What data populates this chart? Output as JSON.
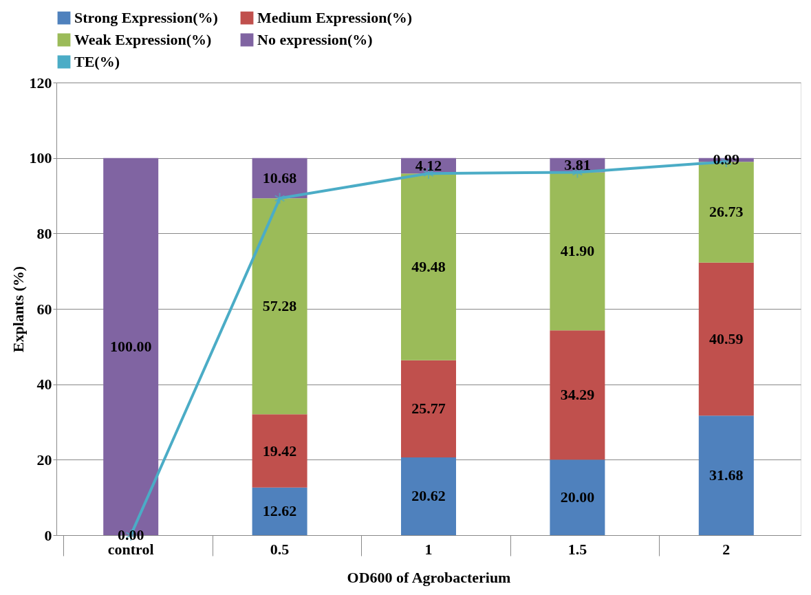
{
  "chart_data": {
    "type": "bar",
    "stacked": true,
    "xlabel": "OD600 of Agrobacterium",
    "ylabel": "Explants (%)",
    "categories": [
      "control",
      "0.5",
      "1",
      "1.5",
      "2"
    ],
    "series": [
      {
        "name": "Strong Expression(%)",
        "color": "#4f81bd",
        "values": [
          null,
          12.62,
          20.62,
          20.0,
          31.68
        ],
        "value_labels": [
          null,
          "12.62",
          "20.62",
          "20.00",
          "31.68"
        ]
      },
      {
        "name": "Medium Expression(%)",
        "color": "#c0504d",
        "values": [
          null,
          19.42,
          25.77,
          34.29,
          40.59
        ],
        "value_labels": [
          null,
          "19.42",
          "25.77",
          "34.29",
          "40.59"
        ]
      },
      {
        "name": "Weak Expression(%)",
        "color": "#9bbb59",
        "values": [
          null,
          57.28,
          49.48,
          41.9,
          26.73
        ],
        "value_labels": [
          null,
          "57.28",
          "49.48",
          "41.90",
          "26.73"
        ]
      },
      {
        "name": "No expression(%)",
        "color": "#8064a2",
        "values": [
          100.0,
          10.68,
          4.12,
          3.81,
          0.99
        ],
        "value_labels": [
          "100.00",
          "10.68",
          "4.12",
          "3.81",
          "0.99"
        ]
      },
      {
        "name": "TE(%)",
        "type": "line",
        "color": "#4bacc6",
        "marker": "cross",
        "values": [
          0,
          89.3,
          95.9,
          96.2,
          99.0
        ],
        "value_labels": [
          "0.00",
          null,
          null,
          null,
          null
        ]
      }
    ],
    "ylim": [
      0,
      120
    ],
    "yticks": [
      0,
      20,
      40,
      60,
      80,
      100,
      120
    ],
    "grid": "y",
    "legend": "top"
  }
}
